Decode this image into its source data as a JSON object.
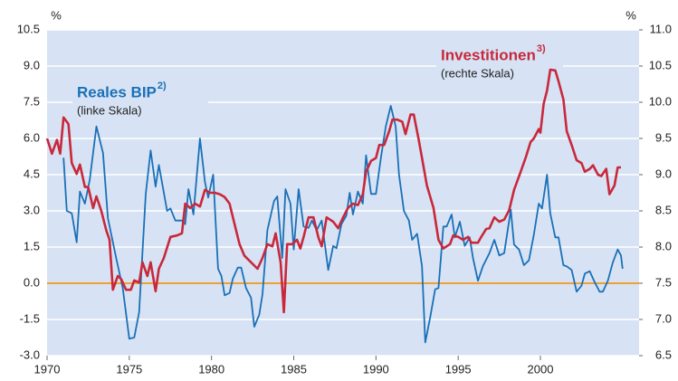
{
  "chart_data": {
    "type": "line",
    "y_unit": "%",
    "y2_unit": "%",
    "xlim": [
      1970,
      2006
    ],
    "xticks": [
      1970,
      1975,
      1980,
      1985,
      1990,
      1995,
      2000
    ],
    "ylim": [
      -3,
      10.5
    ],
    "yticks": [
      {
        "value": -3,
        "label": "-3.0"
      },
      {
        "value": -1.5,
        "label": "-1.5"
      },
      {
        "value": 0,
        "label": "0.0"
      },
      1.5,
      {
        "value": 3,
        "label": "3.0"
      },
      4.5,
      {
        "value": 6,
        "label": "6.0"
      },
      7.5,
      {
        "value": 9,
        "label": "9.0"
      },
      10.5
    ],
    "y2lim": [
      6.5,
      11
    ],
    "y2ticks": [
      6.5,
      {
        "value": 7,
        "label": "7.0"
      },
      7.5,
      {
        "value": 8,
        "label": "8.0"
      },
      8.5,
      {
        "value": 9,
        "label": "9.0"
      },
      9.5,
      {
        "value": 10,
        "label": "10.0"
      },
      10.5,
      {
        "value": 11,
        "label": "11.0"
      }
    ],
    "grid": true,
    "zero_line": {
      "value": 0,
      "color": "#f0a030"
    },
    "series": [
      {
        "name": "Reales BIP",
        "note": "2)",
        "sublabel": "(linke Skala)",
        "color": "#1a70b8",
        "axis": "y",
        "x": [
          1971.0,
          1971.2,
          1971.5,
          1971.8,
          1972.0,
          1972.3,
          1972.6,
          1973.0,
          1973.4,
          1973.7,
          1974.2,
          1974.6,
          1975.0,
          1975.3,
          1975.6,
          1976.0,
          1976.3,
          1976.6,
          1976.8,
          1977.3,
          1977.5,
          1977.8,
          1978.2,
          1978.4,
          1978.6,
          1978.9,
          1979.3,
          1979.6,
          1979.8,
          1980.1,
          1980.4,
          1980.6,
          1980.8,
          1981.1,
          1981.3,
          1981.6,
          1981.8,
          1982.1,
          1982.4,
          1982.6,
          1982.9,
          1983.1,
          1983.4,
          1983.8,
          1984.0,
          1984.3,
          1984.5,
          1984.8,
          1985.0,
          1985.3,
          1985.6,
          1985.9,
          1986.1,
          1986.4,
          1986.7,
          1987.1,
          1987.4,
          1987.6,
          1987.9,
          1988.2,
          1988.4,
          1988.6,
          1988.9,
          1989.2,
          1989.4,
          1989.7,
          1990.0,
          1990.3,
          1990.6,
          1990.9,
          1991.2,
          1991.4,
          1991.7,
          1992.0,
          1992.2,
          1992.5,
          1992.8,
          1993.0,
          1993.3,
          1993.6,
          1993.8,
          1994.1,
          1994.3,
          1994.6,
          1994.8,
          1995.1,
          1995.4,
          1995.7,
          1995.9,
          1996.2,
          1996.5,
          1996.9,
          1997.2,
          1997.5,
          1997.8,
          1998.2,
          1998.4,
          1998.7,
          1999.0,
          1999.3,
          1999.6,
          1999.9,
          2000.1,
          2000.4,
          2000.6,
          2000.9,
          2001.1,
          2001.4,
          2001.6,
          2001.9,
          2002.2,
          2002.5,
          2002.7,
          2003.0,
          2003.3,
          2003.6,
          2003.8,
          2004.1,
          2004.4,
          2004.7,
          2004.9,
          2005.0
        ],
        "values": [
          5.2,
          3.0,
          2.9,
          1.7,
          3.8,
          3.3,
          4.3,
          6.5,
          5.4,
          2.7,
          1.05,
          -0.2,
          -2.3,
          -2.25,
          -1.2,
          3.7,
          5.5,
          4.0,
          4.9,
          3.0,
          3.1,
          2.6,
          2.6,
          2.45,
          3.9,
          2.85,
          6.0,
          4.2,
          3.55,
          4.5,
          0.6,
          0.3,
          -0.5,
          -0.4,
          0.2,
          0.65,
          0.65,
          -0.2,
          -0.6,
          -1.8,
          -1.3,
          -0.45,
          2.2,
          3.4,
          3.6,
          1.05,
          3.9,
          3.3,
          1.4,
          3.9,
          2.35,
          2.3,
          2.6,
          2.2,
          2.6,
          0.55,
          1.55,
          1.45,
          2.45,
          2.8,
          3.75,
          2.85,
          3.8,
          3.3,
          5.3,
          3.7,
          3.7,
          5.2,
          6.5,
          7.35,
          6.5,
          4.5,
          3.0,
          2.6,
          1.8,
          2.05,
          0.7,
          -2.45,
          -1.4,
          -0.25,
          -0.2,
          2.35,
          2.35,
          2.85,
          1.9,
          2.55,
          1.55,
          1.9,
          1.05,
          0.1,
          0.7,
          1.25,
          1.8,
          1.15,
          1.25,
          3.05,
          1.6,
          1.4,
          0.75,
          0.95,
          2.0,
          3.3,
          3.1,
          4.5,
          2.9,
          1.9,
          1.9,
          0.75,
          0.7,
          0.55,
          -0.35,
          -0.1,
          0.4,
          0.5,
          0.05,
          -0.35,
          -0.35,
          0.1,
          0.85,
          1.4,
          1.15,
          0.6
        ]
      },
      {
        "name": "Investitionen",
        "note": "3)",
        "sublabel": "(rechte Skala)",
        "color": "#c8283c",
        "axis": "y2",
        "x": [
          1970.0,
          1970.3,
          1970.6,
          1970.8,
          1971.0,
          1971.3,
          1971.5,
          1971.8,
          1972.0,
          1972.3,
          1972.5,
          1972.8,
          1973.0,
          1973.3,
          1973.6,
          1973.8,
          1974.0,
          1974.3,
          1974.5,
          1974.8,
          1975.1,
          1975.3,
          1975.6,
          1975.8,
          1976.1,
          1976.3,
          1976.6,
          1976.8,
          1977.1,
          1977.5,
          1977.9,
          1978.2,
          1978.4,
          1978.7,
          1979.0,
          1979.3,
          1979.6,
          1979.9,
          1980.2,
          1980.5,
          1980.8,
          1981.1,
          1981.3,
          1981.7,
          1982.0,
          1982.4,
          1982.8,
          1983.1,
          1983.4,
          1983.7,
          1983.9,
          1984.2,
          1984.4,
          1984.6,
          1984.9,
          1985.2,
          1985.4,
          1985.6,
          1985.9,
          1986.2,
          1986.5,
          1986.7,
          1987.0,
          1987.4,
          1987.7,
          1988.0,
          1988.3,
          1988.6,
          1988.9,
          1989.2,
          1989.4,
          1989.7,
          1990.0,
          1990.2,
          1990.5,
          1990.8,
          1991.0,
          1991.3,
          1991.6,
          1991.8,
          1992.1,
          1992.3,
          1992.6,
          1992.8,
          1993.1,
          1993.5,
          1993.8,
          1994.1,
          1994.5,
          1994.7,
          1995.0,
          1995.3,
          1995.6,
          1995.8,
          1996.2,
          1996.4,
          1996.7,
          1996.9,
          1997.2,
          1997.5,
          1997.8,
          1998.1,
          1998.4,
          1998.8,
          1999.1,
          1999.4,
          1999.6,
          1999.9,
          2000.0,
          2000.2,
          2000.4,
          2000.6,
          2000.9,
          2001.1,
          2001.4,
          2001.6,
          2001.9,
          2002.2,
          2002.5,
          2002.7,
          2003.0,
          2003.2,
          2003.5,
          2003.7,
          2004.0,
          2004.2,
          2004.5,
          2004.7,
          2004.9
        ],
        "values": [
          9.5,
          9.29,
          9.48,
          9.29,
          9.79,
          9.7,
          9.16,
          9.01,
          9.14,
          8.83,
          8.83,
          8.54,
          8.7,
          8.5,
          8.23,
          8.1,
          7.41,
          7.6,
          7.56,
          7.41,
          7.41,
          7.54,
          7.51,
          7.79,
          7.6,
          7.79,
          7.39,
          7.7,
          7.85,
          8.14,
          8.16,
          8.19,
          8.6,
          8.54,
          8.6,
          8.56,
          8.79,
          8.75,
          8.75,
          8.73,
          8.69,
          8.6,
          8.41,
          8.04,
          7.88,
          7.79,
          7.7,
          7.85,
          8.04,
          8.01,
          8.19,
          7.79,
          7.1,
          8.04,
          8.04,
          8.1,
          7.98,
          8.14,
          8.41,
          8.41,
          8.13,
          8.01,
          8.41,
          8.35,
          8.26,
          8.41,
          8.54,
          8.6,
          8.58,
          8.73,
          9.04,
          9.19,
          9.23,
          9.41,
          9.41,
          9.6,
          9.76,
          9.76,
          9.73,
          9.56,
          9.83,
          9.83,
          9.48,
          9.23,
          8.85,
          8.54,
          8.1,
          7.98,
          8.04,
          8.16,
          8.14,
          8.1,
          8.14,
          8.06,
          8.06,
          8.14,
          8.25,
          8.26,
          8.41,
          8.35,
          8.38,
          8.51,
          8.79,
          9.04,
          9.23,
          9.45,
          9.5,
          9.63,
          9.58,
          9.98,
          10.16,
          10.45,
          10.44,
          10.29,
          10.04,
          9.6,
          9.41,
          9.2,
          9.16,
          9.04,
          9.08,
          9.13,
          9.0,
          8.98,
          9.08,
          8.73,
          8.85,
          9.1,
          9.1
        ]
      }
    ]
  }
}
